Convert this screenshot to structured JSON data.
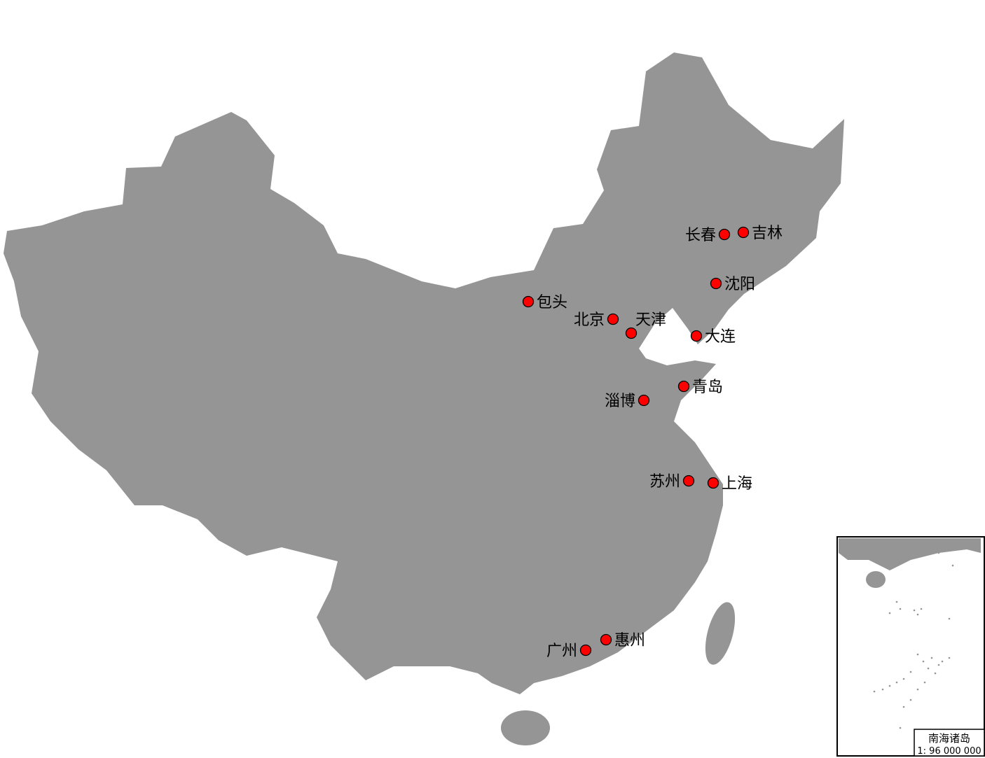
{
  "map": {
    "land_color": "#959595",
    "marker_color": "#ff0000",
    "marker_stroke": "#000000",
    "cities": [
      {
        "name": "长春",
        "label_side": "left"
      },
      {
        "name": "吉林",
        "label_side": "right"
      },
      {
        "name": "沈阳",
        "label_side": "right"
      },
      {
        "name": "包头",
        "label_side": "right"
      },
      {
        "name": "北京",
        "label_side": "left"
      },
      {
        "name": "天津",
        "label_side": "top-right"
      },
      {
        "name": "大连",
        "label_side": "right"
      },
      {
        "name": "青岛",
        "label_side": "right"
      },
      {
        "name": "淄博",
        "label_side": "left"
      },
      {
        "name": "苏州",
        "label_side": "left"
      },
      {
        "name": "上海",
        "label_side": "right"
      },
      {
        "name": "惠州",
        "label_side": "right"
      },
      {
        "name": "广州",
        "label_side": "left"
      }
    ]
  },
  "inset": {
    "title": "南海诸岛",
    "scale": "1: 96 000 000"
  }
}
